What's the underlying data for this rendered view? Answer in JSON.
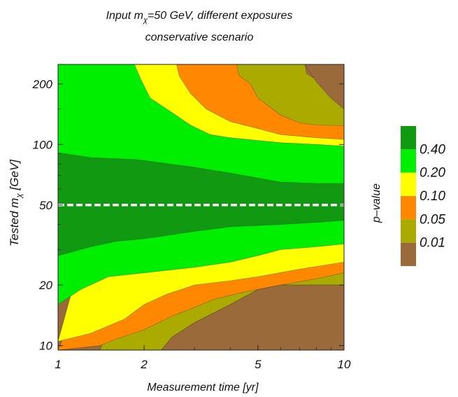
{
  "chart_data": {
    "type": "heatmap",
    "title_line1_prefix": "Input m",
    "title_line1_sub": "χ",
    "title_line1_suffix": "=50 GeV, different exposures",
    "title_line2": "conservative scenario",
    "xlabel": "Measurement time [yr]",
    "ylabel_prefix": "Tested m",
    "ylabel_sub": "χ",
    "ylabel_suffix": " [GeV]",
    "x_scale": "log",
    "y_scale": "log",
    "xlim": [
      1,
      10
    ],
    "ylim": [
      9.5,
      250
    ],
    "x_ticks": [
      1,
      2,
      5,
      10
    ],
    "x_tick_labels": [
      "1",
      "2",
      "5",
      "10"
    ],
    "y_ticks": [
      10,
      20,
      50,
      100,
      200
    ],
    "y_tick_labels": [
      "10",
      "20",
      "50",
      "100",
      "200"
    ],
    "reference_line_y": 50,
    "legend_title": "p–value",
    "legend": [
      {
        "label": "0.40",
        "color": "#119911"
      },
      {
        "label": "0.20",
        "color": "#00ee00"
      },
      {
        "label": "0.10",
        "color": "#ffff00"
      },
      {
        "label": "0.05",
        "color": "#ff8800"
      },
      {
        "label": "0.01",
        "color": "#aaaa00"
      },
      {
        "label": "",
        "color": "#9b6a3a"
      }
    ],
    "regions": [
      {
        "level": "> 0.40",
        "color": "#119911",
        "boundary": [
          [
            1,
            91
          ],
          [
            1.3,
            86
          ],
          [
            1.9,
            84
          ],
          [
            3,
            77
          ],
          [
            4,
            72
          ],
          [
            6,
            65
          ],
          [
            8,
            64
          ],
          [
            10,
            64
          ],
          [
            10,
            42
          ],
          [
            8,
            41
          ],
          [
            6,
            40
          ],
          [
            4,
            39
          ],
          [
            3,
            37
          ],
          [
            2,
            34
          ],
          [
            1.6,
            33
          ],
          [
            1.3,
            31
          ],
          [
            1,
            28
          ]
        ]
      },
      {
        "level": "0.20 – 0.40",
        "color": "#00ee00",
        "boundary": [
          [
            1,
            250
          ],
          [
            1.85,
            250
          ],
          [
            1.95,
            210
          ],
          [
            2.1,
            170
          ],
          [
            2.4,
            150
          ],
          [
            2.9,
            125
          ],
          [
            3.4,
            112
          ],
          [
            4,
            108
          ],
          [
            6,
            102
          ],
          [
            8,
            100
          ],
          [
            10,
            98
          ],
          [
            10,
            32
          ],
          [
            8,
            31
          ],
          [
            6,
            30
          ],
          [
            5,
            28
          ],
          [
            4,
            26
          ],
          [
            3,
            24.5
          ],
          [
            2,
            23
          ],
          [
            1.5,
            22
          ],
          [
            1.2,
            19
          ],
          [
            1,
            16
          ]
        ]
      },
      {
        "level": "0.10 – 0.20",
        "color": "#ffff00",
        "boundary": [
          [
            1.85,
            250
          ],
          [
            2.6,
            250
          ],
          [
            2.65,
            220
          ],
          [
            2.9,
            180
          ],
          [
            3.3,
            150
          ],
          [
            4,
            130
          ],
          [
            5,
            120
          ],
          [
            6,
            112
          ],
          [
            8,
            108
          ],
          [
            10,
            106
          ],
          [
            10,
            26
          ],
          [
            7,
            24
          ],
          [
            5,
            22
          ],
          [
            4,
            21
          ],
          [
            3,
            20
          ],
          [
            2.4,
            18
          ],
          [
            2,
            16
          ],
          [
            1.7,
            13.5
          ],
          [
            1.3,
            11.5
          ],
          [
            1,
            10.5
          ]
        ]
      },
      {
        "level": "0.05 – 0.10",
        "color": "#ff8800",
        "boundary": [
          [
            2.6,
            250
          ],
          [
            4.2,
            250
          ],
          [
            4.3,
            220
          ],
          [
            4.7,
            200
          ],
          [
            5,
            170
          ],
          [
            6,
            140
          ],
          [
            7,
            128
          ],
          [
            8,
            125
          ],
          [
            10,
            124
          ],
          [
            10,
            23
          ],
          [
            8,
            21.5
          ],
          [
            6,
            20
          ],
          [
            4.5,
            18.5
          ],
          [
            3.5,
            17
          ],
          [
            3,
            15.5
          ],
          [
            2.5,
            14
          ],
          [
            2,
            12
          ],
          [
            1.6,
            10.8
          ],
          [
            1.4,
            10
          ],
          [
            1,
            9.5
          ]
        ]
      },
      {
        "level": "0.01 – 0.05",
        "color": "#aaaa00",
        "boundary": [
          [
            4.2,
            250
          ],
          [
            7.3,
            250
          ],
          [
            7.4,
            225
          ],
          [
            8,
            210
          ],
          [
            9,
            190
          ],
          [
            10,
            178
          ],
          [
            10,
            20
          ],
          [
            8,
            20
          ],
          [
            6,
            20
          ],
          [
            5,
            19
          ],
          [
            4,
            16
          ],
          [
            3,
            13
          ],
          [
            2.5,
            11
          ],
          [
            2.3,
            9.5
          ],
          [
            1.4,
            9.5
          ]
        ]
      },
      {
        "level": "< 0.01",
        "color": "#9b6a3a",
        "boundary": [
          [
            7.3,
            250
          ],
          [
            10,
            250
          ],
          [
            10,
            150
          ],
          [
            9,
            170
          ],
          [
            8,
            205
          ]
        ],
        "boundary2": [
          [
            2.3,
            9.5
          ],
          [
            2.5,
            11
          ],
          [
            3,
            13
          ],
          [
            4,
            16
          ],
          [
            5,
            19
          ],
          [
            6,
            20
          ],
          [
            8,
            20
          ],
          [
            10,
            20
          ],
          [
            10,
            9.5
          ]
        ]
      }
    ]
  }
}
